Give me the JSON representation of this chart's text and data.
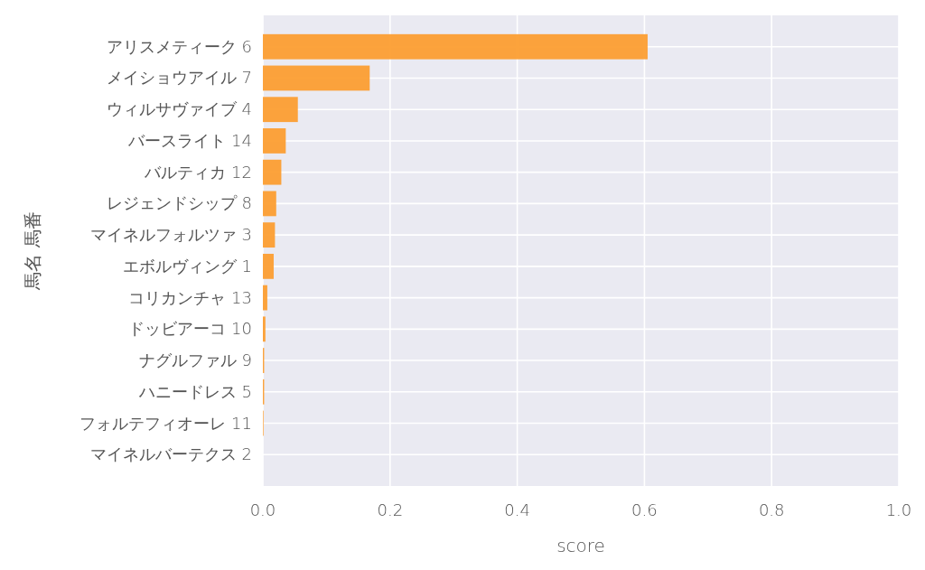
{
  "chart_data": {
    "type": "bar",
    "orientation": "horizontal",
    "xlabel": "score",
    "ylabel": "馬名 馬番",
    "categories": [
      "アリスメティーク 6",
      "メイショウアイル 7",
      "ウィルサヴァイブ 4",
      "バースライト 14",
      "バルティカ 12",
      "レジェンドシップ 8",
      "マイネルフォルツァ 3",
      "エボルヴィング 1",
      "コリカンチャ 13",
      "ドッビアーコ 10",
      "ナグルファル 9",
      "ハニードレス 5",
      "フォルテフィオーレ 11",
      "マイネルバーテクス 2"
    ],
    "values": [
      0.605,
      0.168,
      0.055,
      0.036,
      0.029,
      0.021,
      0.019,
      0.017,
      0.007,
      0.004,
      0.002,
      0.002,
      0.001,
      0
    ],
    "color": "#fc9e32",
    "xlim": [
      0,
      1
    ],
    "xticks": [
      {
        "value": 0,
        "label": "0.0"
      },
      0.2,
      0.4,
      0.6,
      0.8,
      {
        "value": 1,
        "label": "1.0"
      }
    ],
    "grid": true
  }
}
